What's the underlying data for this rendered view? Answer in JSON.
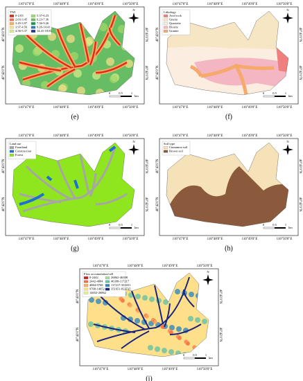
{
  "axis_labels": {
    "lon": [
      "116°47'0\"E",
      "116°48'0\"E",
      "116°49'0\"E",
      "116°50'0\"E"
    ],
    "lat": [
      "40°43'0\"N",
      "40°42'0\"N"
    ]
  },
  "north": "N",
  "scale_bar": {
    "labels": [
      "0",
      "0.5",
      "1"
    ],
    "unit": "km"
  },
  "panels": [
    {
      "caption": "(e)",
      "style": "twi",
      "legend": {
        "title": "TWI",
        "items": [
          {
            "label": "0-2.03",
            "color": "#d7301f"
          },
          {
            "label": "2.03-3.45",
            "color": "#f46d43"
          },
          {
            "label": "3.45-3.97",
            "color": "#fdae61"
          },
          {
            "label": "3.97-4.56",
            "color": "#fee08b"
          },
          {
            "label": "4.56-5.37",
            "color": "#d9ef8b"
          },
          {
            "label": "5.37-6.23",
            "color": "#a6d96a"
          },
          {
            "label": "6.23-7.36",
            "color": "#66bd63"
          },
          {
            "label": "7.36-9.26",
            "color": "#1a9850"
          },
          {
            "label": "9.26-14.41",
            "color": "#2c7bb6"
          },
          {
            "label": "14.41-18.81",
            "color": "#253494"
          }
        ]
      }
    },
    {
      "caption": "(f)",
      "style": "litho",
      "legend": {
        "title": "Lithology",
        "items": [
          {
            "label": "Acid rock",
            "color": "#f08080"
          },
          {
            "label": "Gneiss",
            "color": "#f7e6c4"
          },
          {
            "label": "Quartzite",
            "color": "#fbeee0"
          },
          {
            "label": "Diorite",
            "color": "#f4b6c2"
          },
          {
            "label": "Granite",
            "color": "#f5a96b"
          }
        ]
      }
    },
    {
      "caption": "(g)",
      "style": "landuse",
      "legend": {
        "title": "Land use",
        "items": [
          {
            "label": "Farmland",
            "color": "#a6a6a6"
          },
          {
            "label": "Construction",
            "color": "#1f6fd1"
          },
          {
            "label": "Forest",
            "color": "#8fe61e"
          }
        ]
      }
    },
    {
      "caption": "(h)",
      "style": "soil",
      "legend": {
        "title": "Soil type",
        "items": [
          {
            "label": "Cinnamon soil",
            "color": "#f6e2b8"
          },
          {
            "label": "Brown soil",
            "color": "#8b5a3c"
          }
        ]
      }
    },
    {
      "caption": "(i)",
      "style": "flow",
      "legend": {
        "title": "Flow accumulation/cell",
        "items": [
          {
            "label": "0-2442",
            "color": "#d7191c"
          },
          {
            "label": "2442-4884",
            "color": "#f46d43"
          },
          {
            "label": "4884-9768",
            "color": "#fdae61"
          },
          {
            "label": "9768-14652",
            "color": "#fee08b"
          },
          {
            "label": "14652-26862",
            "color": "#e6f598"
          },
          {
            "label": "26862-46398",
            "color": "#abdda4"
          },
          {
            "label": "46398-117217",
            "color": "#66c2a5"
          },
          {
            "label": "117217-351651",
            "color": "#3288bd"
          },
          {
            "label": "351651-822715",
            "color": "#1a237e"
          }
        ]
      }
    }
  ]
}
